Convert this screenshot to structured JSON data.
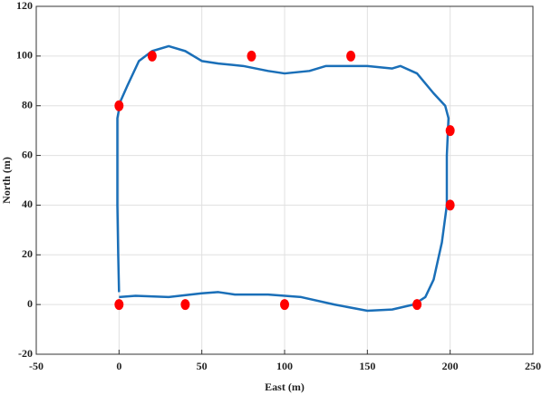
{
  "chart_data": {
    "type": "line",
    "xlabel": "East (m)",
    "ylabel": "North (m)",
    "xlim": [
      -50,
      250
    ],
    "xticks": [
      -50,
      0,
      50,
      100,
      150,
      200,
      250
    ],
    "ylim": [
      -20,
      120
    ],
    "yticks": [
      -20,
      0,
      20,
      40,
      60,
      80,
      100,
      120
    ],
    "grid": true,
    "series": [
      {
        "style": "line",
        "color": "#1a6fb8",
        "x": [
          0,
          10,
          30,
          50,
          60,
          70,
          90,
          110,
          130,
          150,
          165,
          178,
          185,
          190,
          195,
          198,
          198,
          199,
          197,
          190,
          180,
          170,
          165,
          150,
          125,
          115,
          100,
          90,
          75,
          60,
          50,
          40,
          30,
          20,
          12,
          5,
          1,
          -1,
          -1,
          -1,
          -0.5,
          0
        ],
        "values": [
          3,
          3.5,
          3,
          4.5,
          5,
          4,
          4,
          3,
          0,
          -2.5,
          -2,
          0,
          3,
          10,
          25,
          40,
          60,
          75,
          80,
          85,
          93,
          96,
          95,
          96,
          96,
          94,
          93,
          94,
          96,
          97,
          98,
          102,
          104,
          102,
          98,
          88,
          82,
          75,
          60,
          40,
          20,
          5
        ]
      },
      {
        "style": "markers",
        "color": "#ff0000",
        "x": [
          0,
          20,
          80,
          140,
          200,
          200,
          180,
          100,
          40,
          0
        ],
        "values": [
          80,
          100,
          100,
          100,
          70,
          40,
          0,
          0,
          0,
          0
        ]
      }
    ]
  }
}
